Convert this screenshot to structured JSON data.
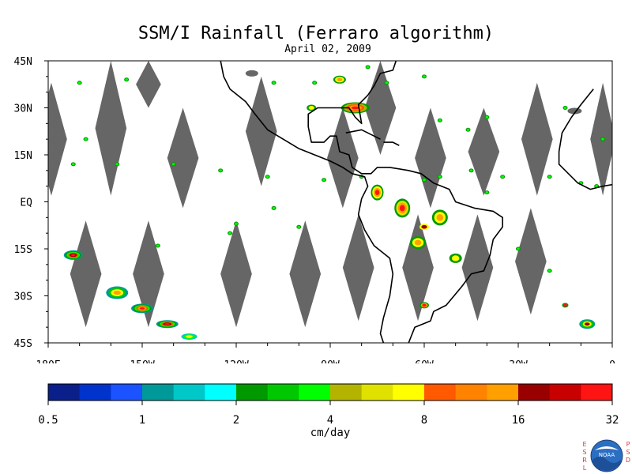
{
  "title": "SSM/I Rainfall (Ferraro algorithm)",
  "subtitle": "April 02, 2009",
  "map": {
    "lon_range": [
      -180,
      0
    ],
    "lat_range": [
      -45,
      45
    ],
    "lat_ticks": [
      {
        "value": 45,
        "label": "45N"
      },
      {
        "value": 30,
        "label": "30N"
      },
      {
        "value": 15,
        "label": "15N"
      },
      {
        "value": 0,
        "label": "EQ"
      },
      {
        "value": -15,
        "label": "15S"
      },
      {
        "value": -30,
        "label": "30S"
      },
      {
        "value": -45,
        "label": "45S"
      }
    ],
    "lon_ticks": [
      {
        "value": -180,
        "label": "180E"
      },
      {
        "value": -150,
        "label": "150W"
      },
      {
        "value": -120,
        "label": "120W"
      },
      {
        "value": -90,
        "label": "90W"
      },
      {
        "value": -60,
        "label": "60W"
      },
      {
        "value": -30,
        "label": "30W"
      },
      {
        "value": 0,
        "label": "0"
      }
    ],
    "no_data_color": "#666666"
  },
  "colorbar": {
    "unit": "cm/day",
    "colors": [
      "#0a1f8a",
      "#0033cc",
      "#1a53ff",
      "#009999",
      "#00c8c8",
      "#00ffff",
      "#009900",
      "#00c800",
      "#00ff00",
      "#b4b400",
      "#e1e100",
      "#ffff00",
      "#ff5a00",
      "#ff8200",
      "#ffa000",
      "#990000",
      "#c80000",
      "#ff1414"
    ],
    "tick_labels": [
      "0.5",
      "1",
      "2",
      "4",
      "8",
      "16",
      "32"
    ]
  },
  "logo": {
    "left_letters": "E S R L",
    "right_letters": "P S D",
    "emblem_text": "NOAA"
  }
}
